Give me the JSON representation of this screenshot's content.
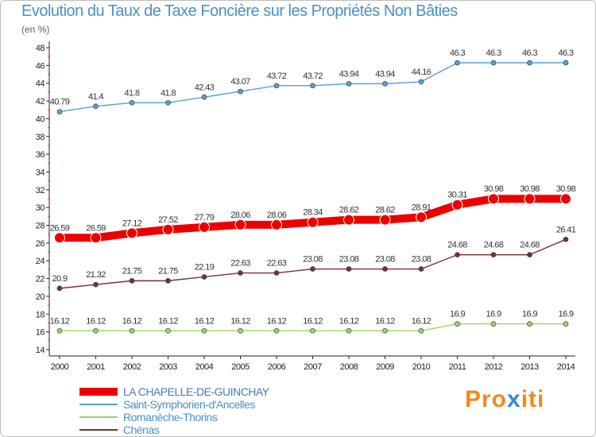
{
  "header": {
    "title": "Evolution du Taux de Taxe Foncière sur les Propriétés Non Bâties",
    "unit": "(en %)"
  },
  "logo": {
    "part1": "Pro",
    "part2": "x",
    "part3": "iti"
  },
  "chart_data": {
    "type": "line",
    "title": "Evolution du Taux de Taxe Foncière sur les Propriétés Non Bâties",
    "ylabel": "(en %)",
    "xlabel": "",
    "x": [
      "2000",
      "2001",
      "2002",
      "2003",
      "2004",
      "2005",
      "2006",
      "2007",
      "2008",
      "2009",
      "2010",
      "2011",
      "2012",
      "2013",
      "2014"
    ],
    "ylim": [
      14,
      48
    ],
    "yticks": [
      14,
      16,
      18,
      20,
      22,
      24,
      26,
      28,
      30,
      32,
      34,
      36,
      38,
      40,
      42,
      44,
      46,
      48
    ],
    "grid": false,
    "legend_position": "bottom-left",
    "series": [
      {
        "name": "LA CHAPELLE-DE-GUINCHAY",
        "color": "#ee0000",
        "emphasis": true,
        "values": [
          26.59,
          26.59,
          27.12,
          27.52,
          27.79,
          28.06,
          28.06,
          28.34,
          28.62,
          28.62,
          28.91,
          30.31,
          30.98,
          30.98,
          30.98
        ],
        "labels": [
          "26.59",
          "26.59",
          "27.12",
          "27.52",
          "27.79",
          "28.06",
          "28.06",
          "28.34",
          "28.62",
          "28.62",
          "28.91",
          "30.31",
          "30.98",
          "30.98",
          "30.98"
        ]
      },
      {
        "name": "Saint-Symphorien-d'Ancelles",
        "color": "#5b9fd4",
        "values": [
          40.79,
          41.4,
          41.8,
          41.8,
          42.43,
          43.07,
          43.72,
          43.72,
          43.94,
          43.94,
          44.16,
          46.3,
          46.3,
          46.3,
          46.3
        ],
        "labels": [
          "40.79",
          "41.4",
          "41.8",
          "41.8",
          "42.43",
          "43.07",
          "43.72",
          "43.72",
          "43.94",
          "43.94",
          "44.16",
          "46.3",
          "46.3",
          "46.3",
          "46.3"
        ]
      },
      {
        "name": "Romanèche-Thorins",
        "color": "#9fd36a",
        "values": [
          16.12,
          16.12,
          16.12,
          16.12,
          16.12,
          16.12,
          16.12,
          16.12,
          16.12,
          16.12,
          16.12,
          16.9,
          16.9,
          16.9,
          16.9
        ],
        "labels": [
          "16.12",
          "16.12",
          "16.12",
          "16.12",
          "16.12",
          "16.12",
          "16.12",
          "16.12",
          "16.12",
          "16.12",
          "16.12",
          "16.9",
          "16.9",
          "16.9",
          "16.9"
        ]
      },
      {
        "name": "Chénas",
        "color": "#7a2f2f",
        "values": [
          20.9,
          21.32,
          21.75,
          21.75,
          22.19,
          22.63,
          22.63,
          23.08,
          23.08,
          23.08,
          23.08,
          24.68,
          24.68,
          24.68,
          26.41
        ],
        "labels": [
          "20.9",
          "21.32",
          "21.75",
          "21.75",
          "22.19",
          "22.63",
          "22.63",
          "23.08",
          "23.08",
          "23.08",
          "23.08",
          "24.68",
          "24.68",
          "24.68",
          "26.41"
        ]
      }
    ]
  }
}
